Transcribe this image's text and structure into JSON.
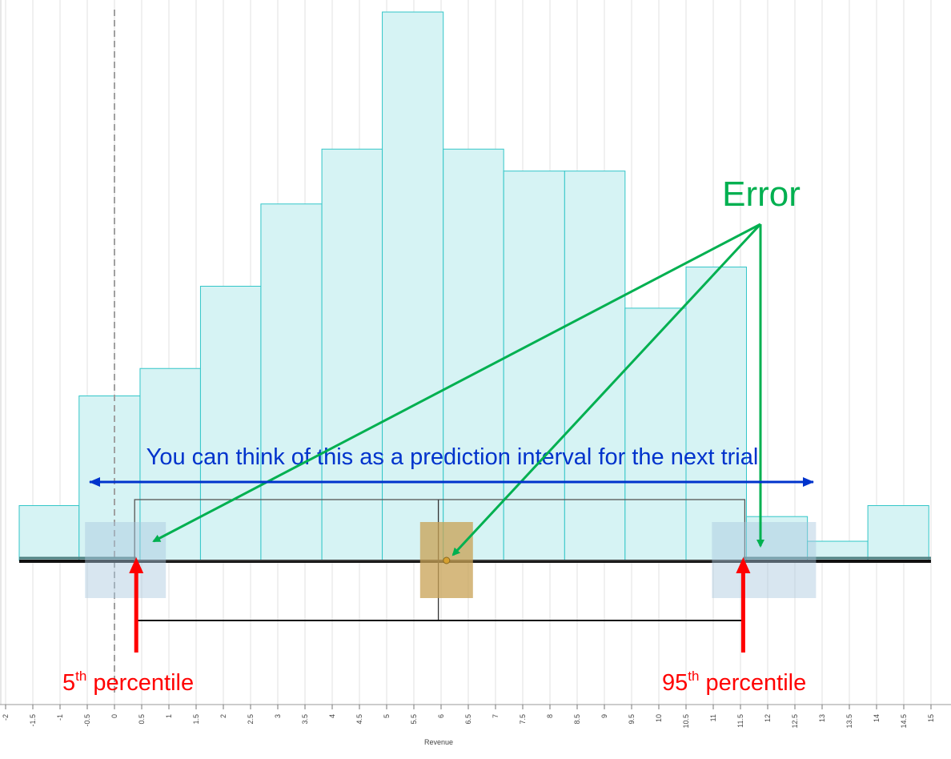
{
  "chart_data": {
    "type": "bar",
    "xlabel": "Revenue",
    "x_ticks": [
      -2,
      -1.5,
      -1,
      -0.5,
      0,
      0.5,
      1,
      1.5,
      2,
      2.5,
      3,
      3.5,
      4,
      4.5,
      5,
      5.5,
      6,
      6.5,
      7,
      7.5,
      8,
      8.5,
      9,
      9.5,
      10,
      10.5,
      11,
      11.5,
      12,
      12.5,
      13,
      13.5,
      14,
      14.5,
      15
    ],
    "xlim": [
      -2.05,
      15.1
    ],
    "grid": true,
    "bins": [
      {
        "x0": -1.75,
        "x1": -0.65,
        "value": 1
      },
      {
        "x0": -0.65,
        "x1": 0.47,
        "value": 3
      },
      {
        "x0": 0.47,
        "x1": 1.58,
        "value": 3.5
      },
      {
        "x0": 1.58,
        "x1": 2.69,
        "value": 5
      },
      {
        "x0": 2.69,
        "x1": 3.81,
        "value": 6.5
      },
      {
        "x0": 3.81,
        "x1": 4.92,
        "value": 7.5
      },
      {
        "x0": 4.92,
        "x1": 6.04,
        "value": 10
      },
      {
        "x0": 6.04,
        "x1": 7.15,
        "value": 7.5
      },
      {
        "x0": 7.15,
        "x1": 8.27,
        "value": 7.1
      },
      {
        "x0": 8.27,
        "x1": 9.38,
        "value": 7.1
      },
      {
        "x0": 9.38,
        "x1": 10.5,
        "value": 4.6
      },
      {
        "x0": 10.5,
        "x1": 11.61,
        "value": 5.35
      },
      {
        "x0": 11.61,
        "x1": 12.73,
        "value": 0.8
      },
      {
        "x0": 12.73,
        "x1": 13.84,
        "value": 0.35
      },
      {
        "x0": 13.84,
        "x1": 14.96,
        "value": 1
      }
    ],
    "ylim": [
      0,
      10
    ],
    "zero_line_x": 0,
    "percentile_5": 0.4,
    "percentile_95": 11.55,
    "median": 5.95,
    "mean": 6.1,
    "colors": {
      "bar_fill": "#d6f3f4",
      "bar_stroke": "#33c6c8",
      "error_arrow": "#00b050",
      "interval_arrow": "#0033cc",
      "percentile_arrow": "#ff0000"
    }
  },
  "annotations": {
    "error_label": "Error",
    "interval_label": "You can think of this as a prediction interval for the next trial",
    "p5_number": "5",
    "p5_suffix": "th",
    "p5_word": " percentile",
    "p95_number": "95",
    "p95_suffix": "th",
    "p95_word": " percentile"
  }
}
